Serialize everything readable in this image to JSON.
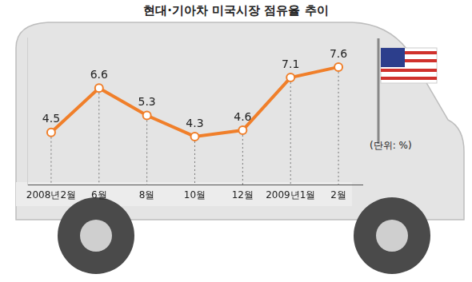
{
  "chart_data": {
    "type": "line",
    "title": "현대·기아차 미국시장 점유율 추이",
    "subtitle": "(단위: %)",
    "categories": [
      "2008년2월",
      "6월",
      "8월",
      "10월",
      "12월",
      "2009년1월",
      "2월"
    ],
    "values": [
      4.5,
      6.6,
      5.3,
      4.3,
      4.6,
      7.1,
      7.6
    ],
    "color": "#f07f2a",
    "marker": "circle",
    "data_labels": true,
    "tick_labels": "x",
    "ylim": [
      2,
      9
    ],
    "grid": false
  }
}
